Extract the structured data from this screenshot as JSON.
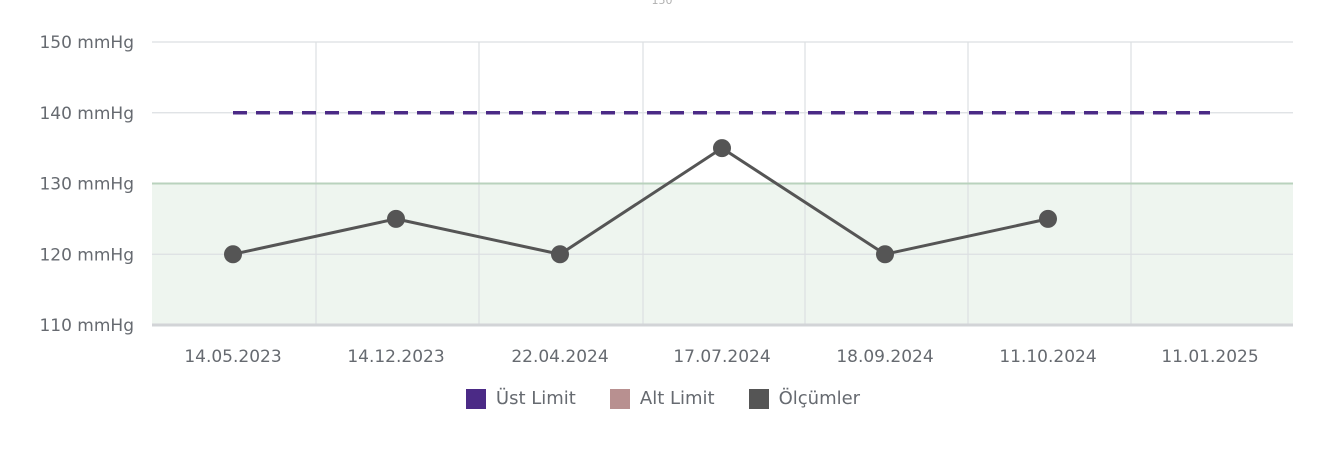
{
  "chart_data": {
    "type": "line",
    "top_label": "150",
    "y_ticks": [
      {
        "value": 150,
        "label": "150 mmHg"
      },
      {
        "value": 140,
        "label": "140 mmHg"
      },
      {
        "value": 130,
        "label": "130 mmHg"
      },
      {
        "value": 120,
        "label": "120 mmHg"
      },
      {
        "value": 110,
        "label": "110 mmHg"
      }
    ],
    "ylim": [
      110,
      150
    ],
    "categories": [
      "14.05.2023",
      "14.12.2023",
      "22.04.2024",
      "17.07.2024",
      "18.09.2024",
      "11.10.2024",
      "11.01.2025"
    ],
    "series": [
      {
        "name": "Üst Limit",
        "color": "#4b2a86",
        "style": "dashed",
        "values": [
          140,
          140,
          140,
          140,
          140,
          140,
          140
        ]
      },
      {
        "name": "Alt Limit",
        "color": "#b89090",
        "style": "band",
        "values": [
          130,
          130,
          130,
          130,
          130,
          130,
          130
        ]
      },
      {
        "name": "Ölçümler",
        "color": "#555555",
        "style": "line-markers",
        "values": [
          120,
          125,
          120,
          135,
          120,
          125,
          null
        ]
      }
    ],
    "band_fill": "#eef5ef",
    "band_line": "#b9d2bd",
    "grid": true,
    "legend_position": "bottom-center"
  },
  "legend": [
    {
      "label": "Üst Limit",
      "color": "#4b2a86"
    },
    {
      "label": "Alt Limit",
      "color": "#b89090"
    },
    {
      "label": "Ölçümler",
      "color": "#555555"
    }
  ]
}
